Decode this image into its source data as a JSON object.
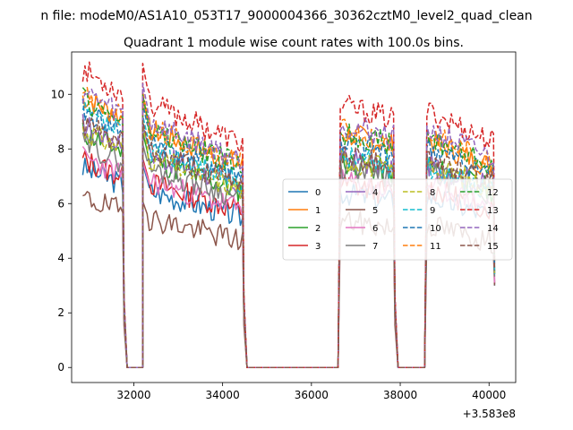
{
  "chart_data": {
    "type": "line",
    "suptitle": "n file: modeM0/AS1A10_053T17_9000004366_30362cztM0_level2_quad_clean",
    "title": "Quadrant 1 module wise count rates with 100.0s bins.",
    "xlabel": "",
    "ylabel": "",
    "x_offset_label": "+3.583e8",
    "xlim": [
      30600,
      40600
    ],
    "ylim": [
      -0.55,
      11.55
    ],
    "xticks": [
      {
        "value": 32000,
        "label": "32000"
      },
      {
        "value": 34000,
        "label": "34000"
      },
      {
        "value": 36000,
        "label": "36000"
      },
      {
        "value": 38000,
        "label": "38000"
      },
      {
        "value": 40000,
        "label": "40000"
      }
    ],
    "yticks": [
      {
        "value": 0,
        "label": "0"
      },
      {
        "value": 2,
        "label": "2"
      },
      {
        "value": 4,
        "label": "4"
      },
      {
        "value": 6,
        "label": "6"
      },
      {
        "value": 8,
        "label": "8"
      },
      {
        "value": 10,
        "label": "10"
      }
    ],
    "legend_placement": "center-right",
    "legend_columns": 4,
    "x_start": 30850,
    "x_step": 50,
    "series": [
      {
        "name": "0",
        "color": "#1f77b4",
        "dash": "solid",
        "start_level": 7.3,
        "end_level": 6.5,
        "first_peak": 7.1,
        "seed": 3
      },
      {
        "name": "1",
        "color": "#ff7f0e",
        "dash": "solid",
        "start_level": 9.9,
        "end_level": 8.6,
        "first_peak": 9.4,
        "seed": 7
      },
      {
        "name": "2",
        "color": "#2ca02c",
        "dash": "solid",
        "start_level": 8.6,
        "end_level": 7.6,
        "first_peak": 8.2,
        "seed": 11
      },
      {
        "name": "3",
        "color": "#d62728",
        "dash": "solid",
        "start_level": 7.6,
        "end_level": 6.8,
        "first_peak": 7.3,
        "seed": 13
      },
      {
        "name": "4",
        "color": "#9467bd",
        "dash": "solid",
        "start_level": 8.9,
        "end_level": 7.7,
        "first_peak": 8.5,
        "seed": 17
      },
      {
        "name": "5",
        "color": "#8c564b",
        "dash": "solid",
        "start_level": 6.2,
        "end_level": 5.4,
        "first_peak": 5.8,
        "seed": 19
      },
      {
        "name": "6",
        "color": "#e377c2",
        "dash": "solid",
        "start_level": 7.7,
        "end_level": 6.9,
        "first_peak": 7.2,
        "seed": 23
      },
      {
        "name": "7",
        "color": "#7f7f7f",
        "dash": "solid",
        "start_level": 8.2,
        "end_level": 7.4,
        "first_peak": 7.8,
        "seed": 29
      },
      {
        "name": "8",
        "color": "#bcbd22",
        "dash": "dashed",
        "start_level": 8.7,
        "end_level": 7.7,
        "first_peak": 8.4,
        "seed": 31
      },
      {
        "name": "9",
        "color": "#17becf",
        "dash": "dashed",
        "start_level": 9.3,
        "end_level": 7.6,
        "first_peak": 8.8,
        "seed": 37
      },
      {
        "name": "10",
        "color": "#1f77b4",
        "dash": "dashed",
        "start_level": 9.4,
        "end_level": 8.3,
        "first_peak": 9.2,
        "seed": 41
      },
      {
        "name": "11",
        "color": "#ff7f0e",
        "dash": "dashed",
        "start_level": 9.9,
        "end_level": 8.8,
        "first_peak": 9.6,
        "seed": 43
      },
      {
        "name": "12",
        "color": "#2ca02c",
        "dash": "dashed",
        "start_level": 9.8,
        "end_level": 8.7,
        "first_peak": 9.5,
        "seed": 47
      },
      {
        "name": "13",
        "color": "#d62728",
        "dash": "dashed",
        "start_level": 10.9,
        "end_level": 9.7,
        "first_peak": 10.6,
        "seed": 53
      },
      {
        "name": "14",
        "color": "#9467bd",
        "dash": "dashed",
        "start_level": 10.1,
        "end_level": 9.0,
        "first_peak": 9.9,
        "seed": 59
      },
      {
        "name": "15",
        "color": "#8c564b",
        "dash": "dashed",
        "start_level": 8.9,
        "end_level": 7.9,
        "first_peak": 8.6,
        "seed": 61
      }
    ],
    "segments": [
      {
        "x_start": 30850,
        "x_end": 31750,
        "trend": 0.0,
        "start_factor": 1.0,
        "end_factor": 0.92
      },
      {
        "x_start": 32200,
        "x_end": 34450,
        "trend": 0.0,
        "start_factor": 0.93,
        "end_factor": 0.78
      },
      {
        "x_start": 36650,
        "x_end": 37850,
        "trend": 0.0,
        "start_factor": 0.95,
        "end_factor": 0.9
      },
      {
        "x_start": 38600,
        "x_end": 40100,
        "trend": 0.0,
        "start_factor": 0.97,
        "end_factor": 0.85
      }
    ],
    "gaps": [
      {
        "x_from": 31850,
        "x_to": 32200
      },
      {
        "x_from": 34550,
        "x_to": 36600
      },
      {
        "x_from": 37950,
        "x_to": 38550
      }
    ]
  }
}
